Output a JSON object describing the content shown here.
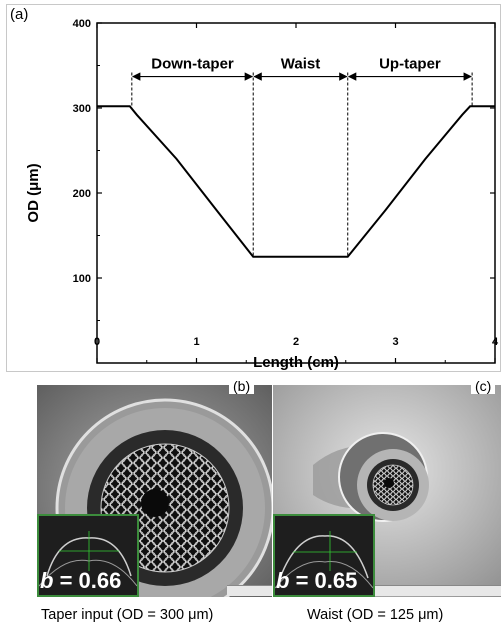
{
  "panel_a": {
    "label": "(a)",
    "chart_data": {
      "type": "line",
      "xlabel": "Length (cm)",
      "ylabel": "OD (μm)",
      "xlim": [
        0,
        4
      ],
      "ylim": [
        0,
        400
      ],
      "xticks": [
        "0",
        "1",
        "2",
        "3",
        "4"
      ],
      "yticks": [
        "100",
        "200",
        "300",
        "400"
      ],
      "x": [
        0,
        0.33,
        0.4,
        0.8,
        1.2,
        1.57,
        2.52,
        2.9,
        3.3,
        3.67,
        3.75,
        4.0
      ],
      "y": [
        302,
        302,
        292,
        240,
        180,
        125,
        125,
        180,
        240,
        292,
        302,
        302
      ],
      "regions": [
        {
          "label": "Down-taper",
          "x_start": 0.35,
          "x_end": 1.57
        },
        {
          "label": "Waist",
          "x_start": 1.57,
          "x_end": 2.52
        },
        {
          "label": "Up-taper",
          "x_start": 2.52,
          "x_end": 3.77
        }
      ],
      "region_arrow_y": 337
    }
  },
  "panel_b": {
    "label": "(b)",
    "b_value_symbol": "b",
    "b_value_text": " = 0.66",
    "caption": "Taper input (OD = 300 μm)"
  },
  "panel_c": {
    "label": "(c)",
    "b_value_symbol": "b",
    "b_value_text": " = 0.65",
    "caption": "Waist (OD = 125 μm)"
  }
}
